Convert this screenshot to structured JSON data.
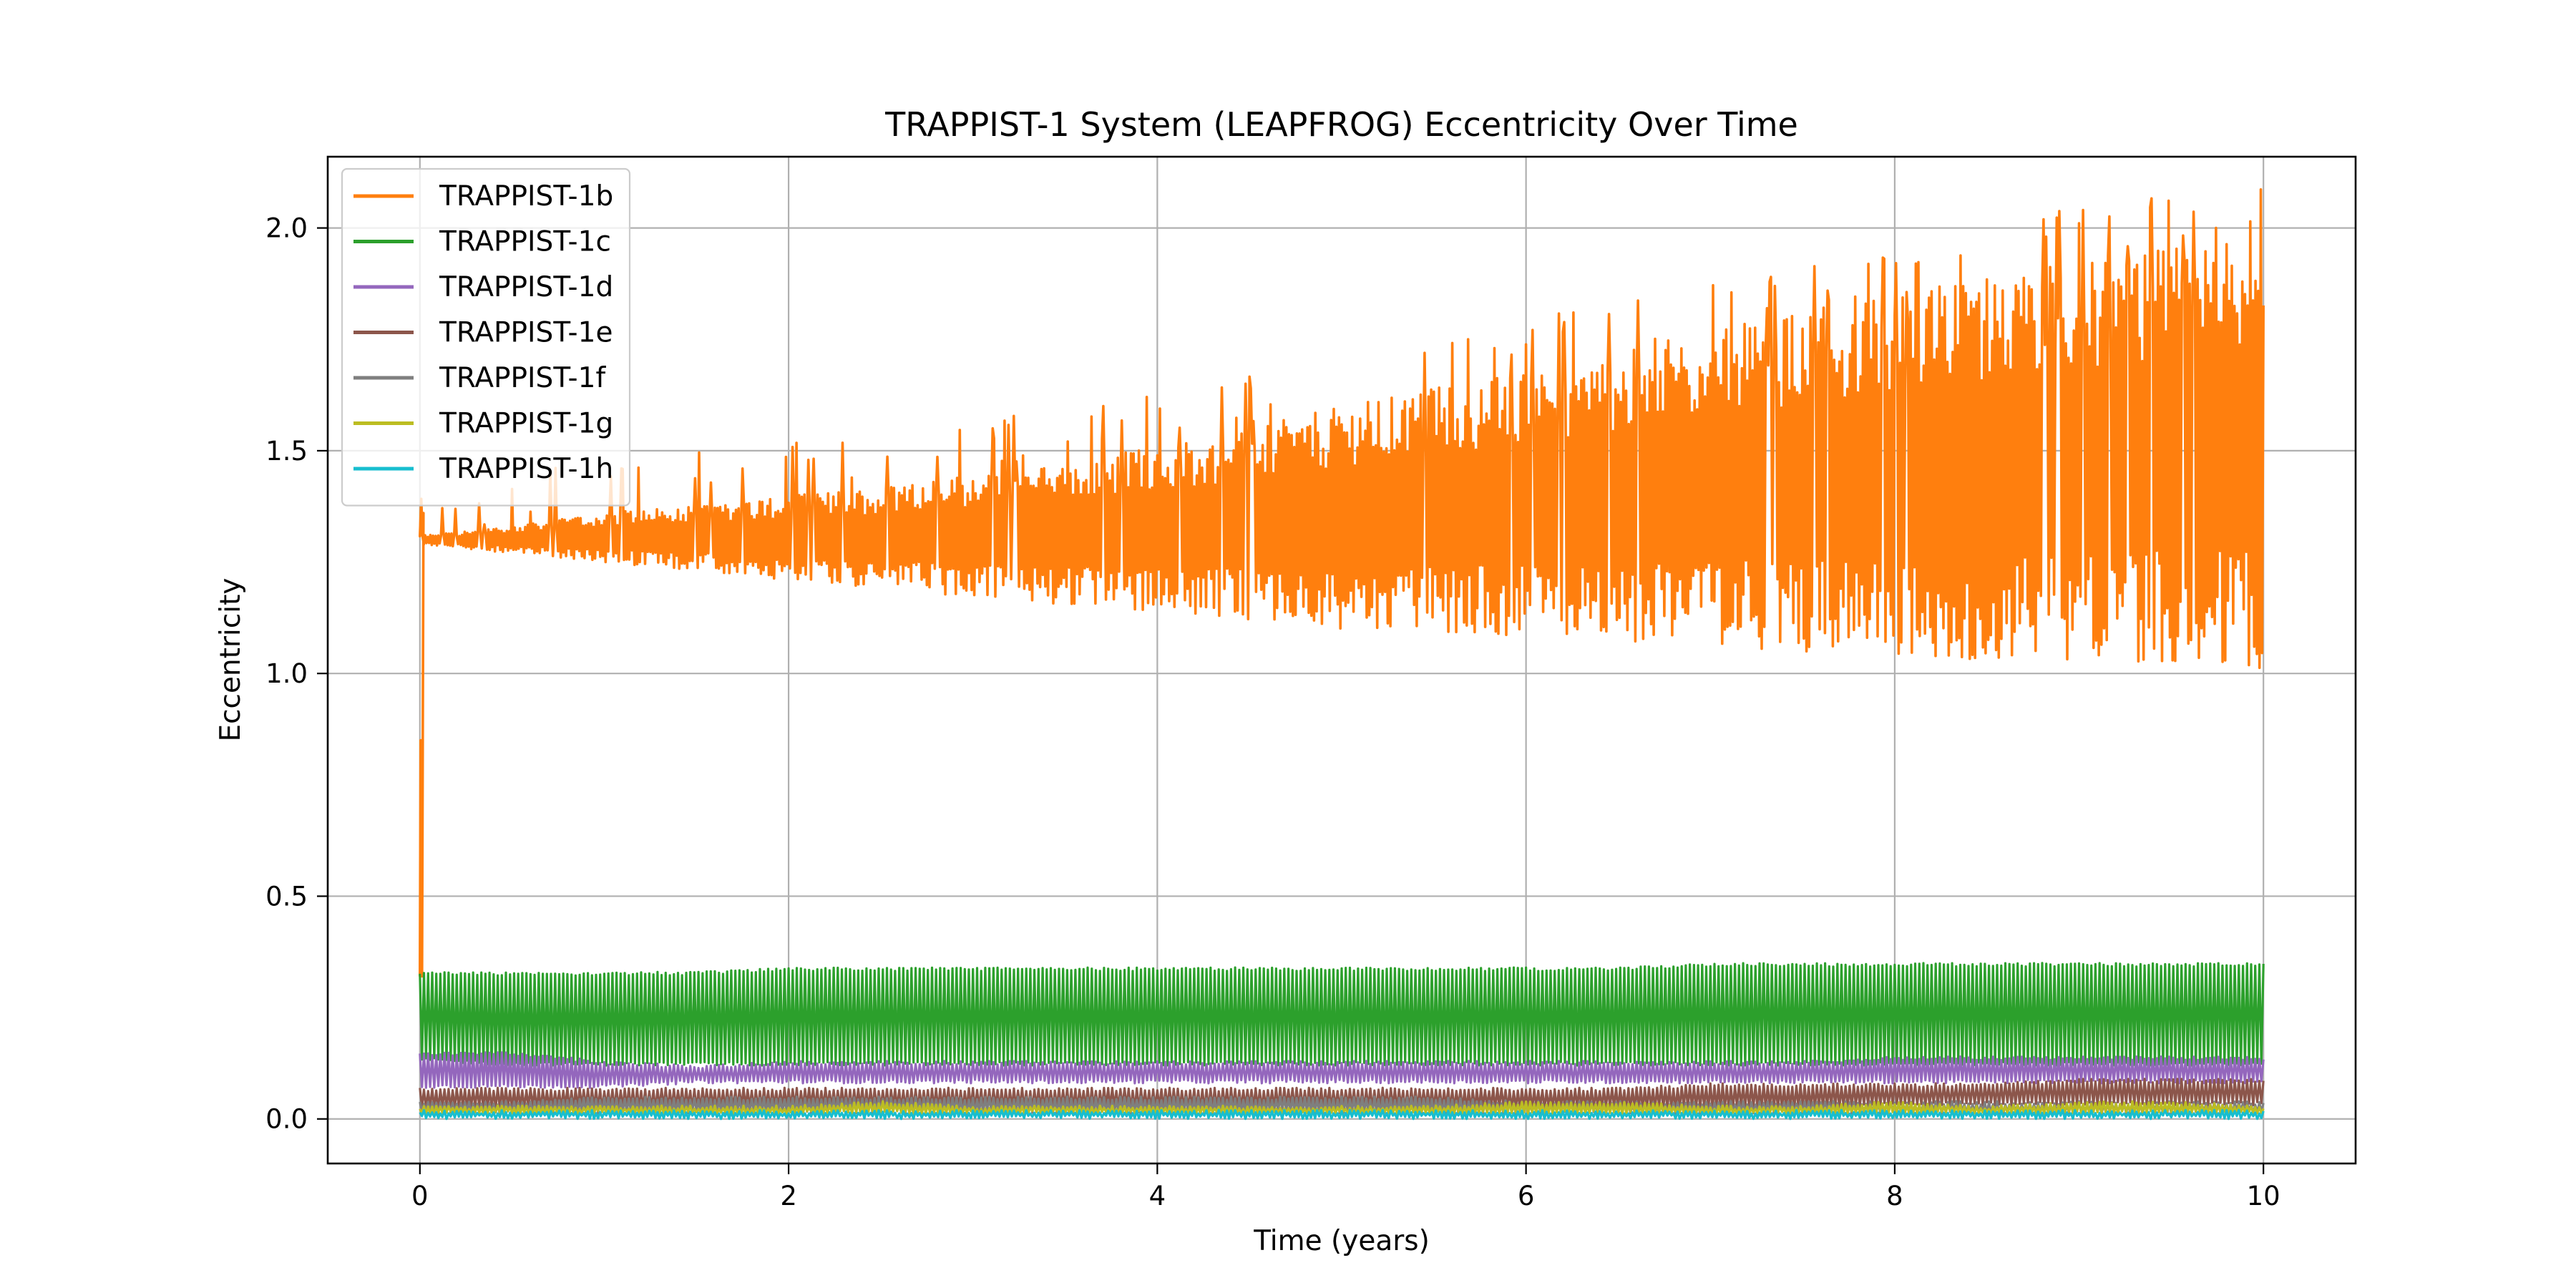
{
  "chart_data": {
    "type": "line",
    "title": "TRAPPIST-1 System (LEAPFROG) Eccentricity Over Time",
    "xlabel": "Time (years)",
    "ylabel": "Eccentricity",
    "xlim": [
      -0.5,
      10.5
    ],
    "ylim": [
      -0.1,
      2.16
    ],
    "x_ticks": [
      0,
      2,
      4,
      6,
      8,
      10
    ],
    "x_tick_labels": [
      "0",
      "2",
      "4",
      "6",
      "8",
      "10"
    ],
    "y_ticks": [
      0.0,
      0.5,
      1.0,
      1.5,
      2.0
    ],
    "y_tick_labels": [
      "0.0",
      "0.5",
      "1.0",
      "1.5",
      "2.0"
    ],
    "grid": true,
    "legend_position": "top-left",
    "x": [
      0,
      0.5,
      1,
      1.5,
      2,
      2.5,
      3,
      3.5,
      4,
      4.5,
      5,
      5.5,
      6,
      6.5,
      7,
      7.5,
      8,
      8.5,
      9,
      9.5,
      10
    ],
    "series": [
      {
        "name": "TRAPPIST-1b",
        "color": "#ff7f0e",
        "min": [
          1.29,
          1.27,
          1.25,
          1.23,
          1.21,
          1.19,
          1.17,
          1.15,
          1.13,
          1.12,
          1.1,
          1.09,
          1.08,
          1.07,
          1.06,
          1.05,
          1.04,
          1.03,
          1.02,
          1.02,
          1.01
        ],
        "max": [
          1.31,
          1.33,
          1.36,
          1.38,
          1.4,
          1.42,
          1.45,
          1.48,
          1.51,
          1.55,
          1.6,
          1.64,
          1.68,
          1.72,
          1.77,
          1.81,
          1.85,
          1.89,
          1.93,
          1.96,
          2.0
        ],
        "initial_spike": [
          0.32,
          0.85,
          1.36
        ]
      },
      {
        "name": "TRAPPIST-1c",
        "color": "#2ca02c",
        "min": [
          0.13,
          0.12,
          0.12,
          0.12,
          0.12,
          0.12,
          0.12,
          0.12,
          0.12,
          0.12,
          0.12,
          0.12,
          0.12,
          0.12,
          0.12,
          0.12,
          0.12,
          0.12,
          0.12,
          0.12,
          0.12
        ],
        "max": [
          0.33,
          0.33,
          0.33,
          0.33,
          0.34,
          0.34,
          0.34,
          0.34,
          0.34,
          0.34,
          0.34,
          0.34,
          0.34,
          0.34,
          0.35,
          0.35,
          0.35,
          0.35,
          0.35,
          0.35,
          0.35
        ]
      },
      {
        "name": "TRAPPIST-1d",
        "color": "#9467bd",
        "min": [
          0.07,
          0.07,
          0.07,
          0.08,
          0.08,
          0.08,
          0.08,
          0.08,
          0.08,
          0.08,
          0.08,
          0.08,
          0.08,
          0.08,
          0.08,
          0.08,
          0.08,
          0.08,
          0.08,
          0.08,
          0.08
        ],
        "max": [
          0.15,
          0.15,
          0.13,
          0.12,
          0.13,
          0.13,
          0.13,
          0.13,
          0.13,
          0.13,
          0.13,
          0.13,
          0.13,
          0.13,
          0.13,
          0.13,
          0.14,
          0.14,
          0.14,
          0.14,
          0.14
        ]
      },
      {
        "name": "TRAPPIST-1e",
        "color": "#8c564b",
        "min": [
          0.02,
          0.02,
          0.02,
          0.02,
          0.02,
          0.02,
          0.02,
          0.02,
          0.02,
          0.02,
          0.02,
          0.02,
          0.02,
          0.02,
          0.02,
          0.02,
          0.03,
          0.03,
          0.03,
          0.03,
          0.03
        ],
        "max": [
          0.07,
          0.07,
          0.07,
          0.07,
          0.07,
          0.07,
          0.07,
          0.07,
          0.07,
          0.07,
          0.07,
          0.07,
          0.07,
          0.07,
          0.08,
          0.08,
          0.08,
          0.08,
          0.09,
          0.09,
          0.09
        ]
      },
      {
        "name": "TRAPPIST-1f",
        "color": "#7f7f7f",
        "min": [
          0.01,
          0.01,
          0.01,
          0.01,
          0.01,
          0.01,
          0.01,
          0.01,
          0.01,
          0.01,
          0.01,
          0.01,
          0.01,
          0.01,
          0.01,
          0.01,
          0.01,
          0.01,
          0.01,
          0.01,
          0.01
        ],
        "max": [
          0.04,
          0.04,
          0.05,
          0.05,
          0.05,
          0.05,
          0.05,
          0.05,
          0.05,
          0.05,
          0.05,
          0.05,
          0.04,
          0.04,
          0.04,
          0.04,
          0.04,
          0.04,
          0.04,
          0.04,
          0.04
        ]
      },
      {
        "name": "TRAPPIST-1g",
        "color": "#bcbd22",
        "min": [
          0.01,
          0.01,
          0.01,
          0.01,
          0.01,
          0.01,
          0.01,
          0.01,
          0.01,
          0.01,
          0.01,
          0.01,
          0.01,
          0.01,
          0.01,
          0.01,
          0.01,
          0.01,
          0.01,
          0.01,
          0.01
        ],
        "max": [
          0.03,
          0.03,
          0.03,
          0.03,
          0.03,
          0.04,
          0.03,
          0.03,
          0.03,
          0.03,
          0.03,
          0.03,
          0.04,
          0.04,
          0.03,
          0.03,
          0.04,
          0.03,
          0.04,
          0.04,
          0.03
        ]
      },
      {
        "name": "TRAPPIST-1h",
        "color": "#17becf",
        "min": [
          0.0,
          0.0,
          0.0,
          0.0,
          0.0,
          0.0,
          0.0,
          0.0,
          0.0,
          0.0,
          0.0,
          0.0,
          0.0,
          0.0,
          0.0,
          0.0,
          0.0,
          0.0,
          0.0,
          0.0,
          0.0
        ],
        "max": [
          0.02,
          0.02,
          0.02,
          0.02,
          0.02,
          0.02,
          0.02,
          0.02,
          0.02,
          0.02,
          0.02,
          0.02,
          0.02,
          0.02,
          0.02,
          0.02,
          0.02,
          0.02,
          0.02,
          0.02,
          0.02
        ]
      }
    ]
  }
}
